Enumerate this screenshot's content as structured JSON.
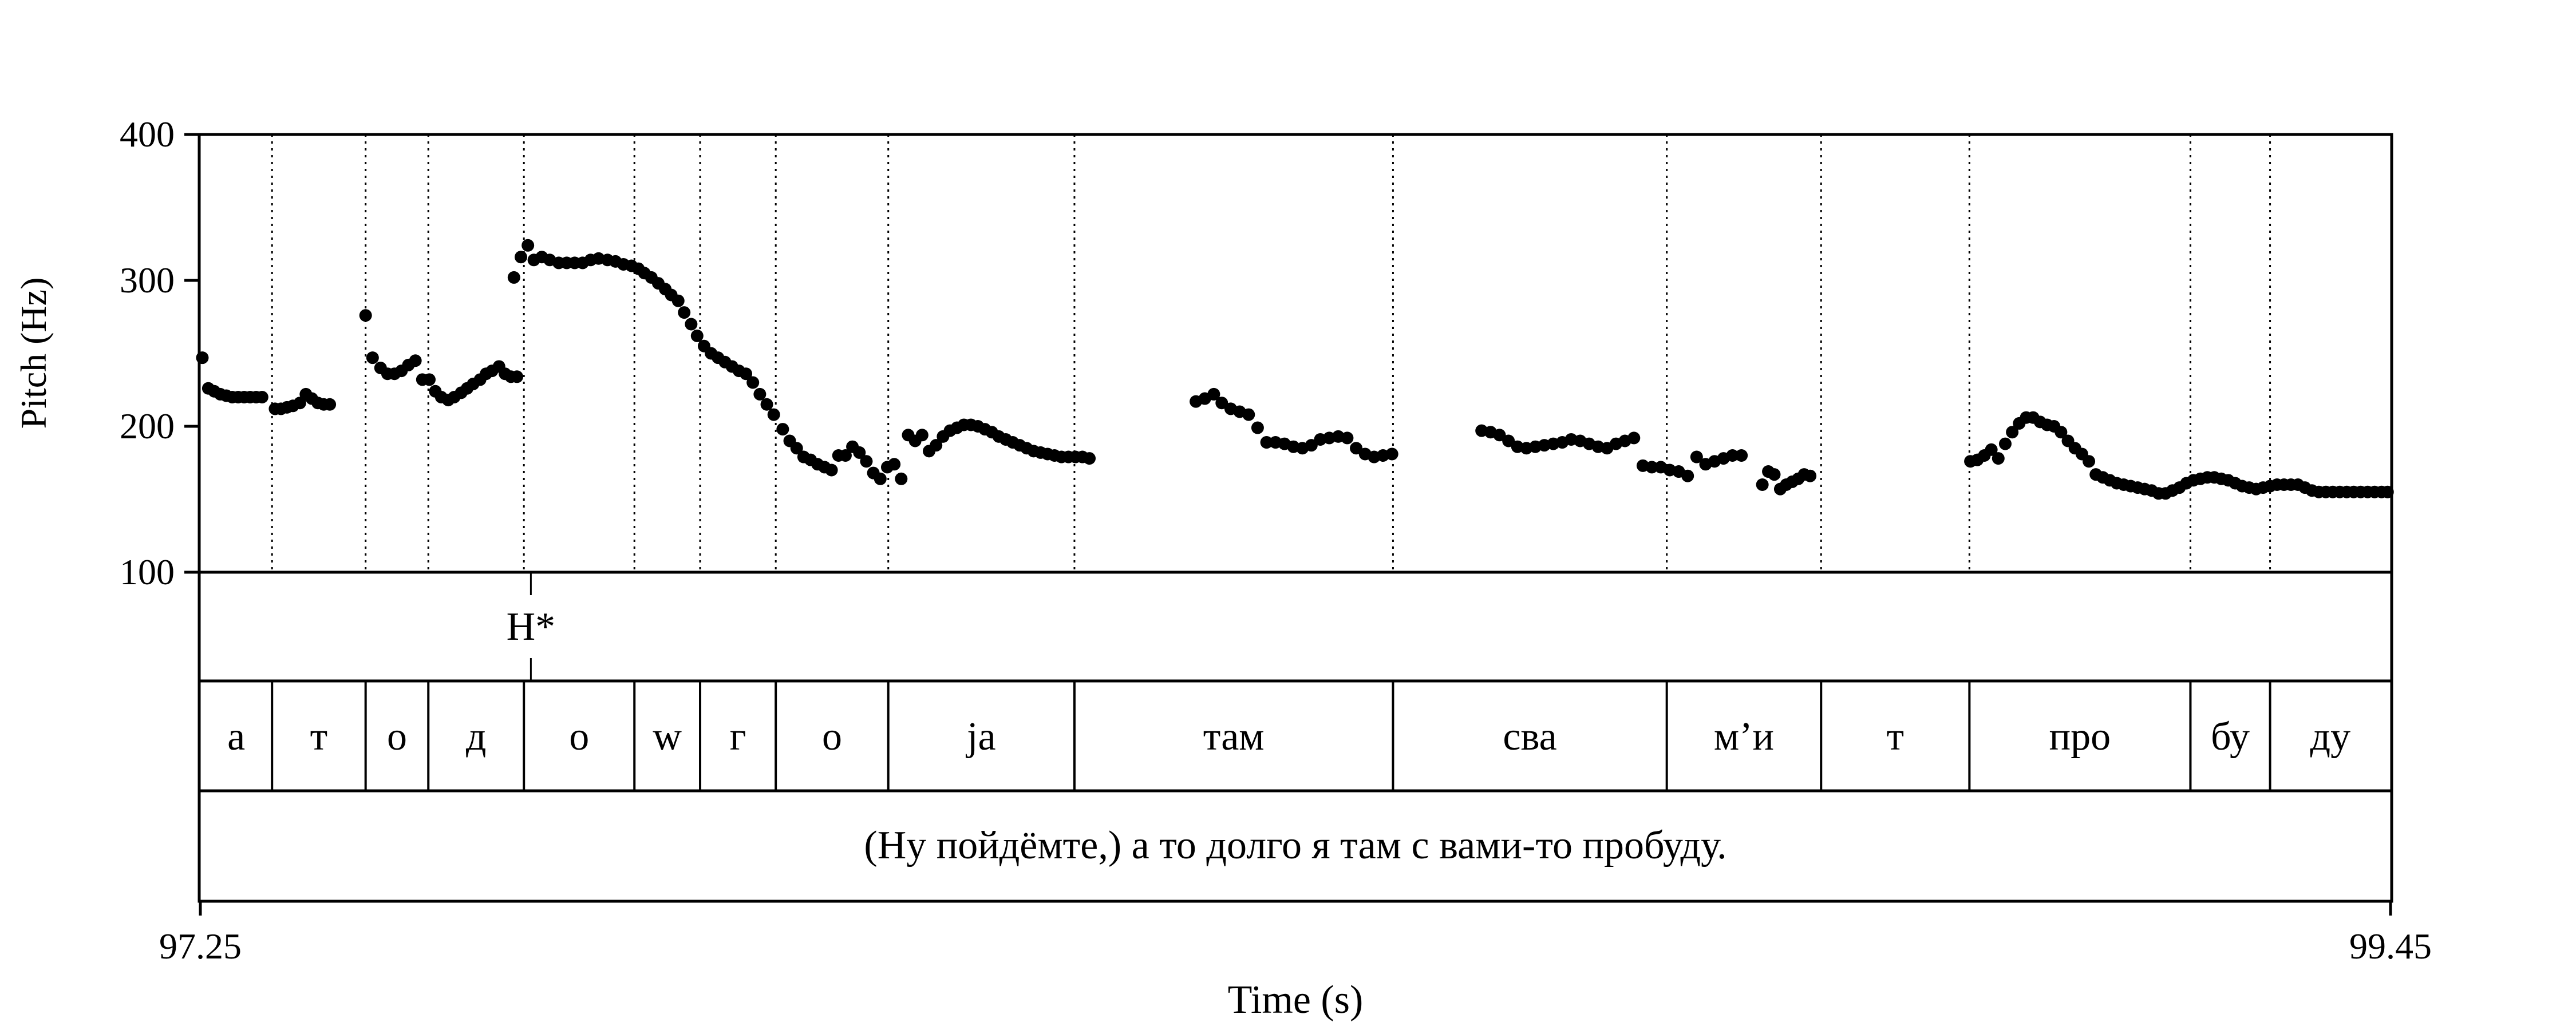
{
  "chart_data": {
    "type": "scatter",
    "xlabel": "Time (s)",
    "ylabel": "Pitch (Hz)",
    "xlim": [
      97.25,
      99.45
    ],
    "ylim": [
      100,
      400
    ],
    "x_ticks": [
      "97.25",
      "99.45"
    ],
    "y_ticks": [
      "100",
      "200",
      "300",
      "400"
    ],
    "grid": false,
    "tones": [
      {
        "label": "H*",
        "time": 97.582
      }
    ],
    "segments": [
      {
        "label": "а",
        "start": 97.25,
        "end": 97.322
      },
      {
        "label": "т",
        "start": 97.322,
        "end": 97.416
      },
      {
        "label": "о",
        "start": 97.416,
        "end": 97.479
      },
      {
        "label": "д",
        "start": 97.479,
        "end": 97.575
      },
      {
        "label": "о",
        "start": 97.575,
        "end": 97.686
      },
      {
        "label": "w",
        "start": 97.686,
        "end": 97.752
      },
      {
        "label": "г",
        "start": 97.752,
        "end": 97.828
      },
      {
        "label": "о",
        "start": 97.828,
        "end": 97.941
      },
      {
        "label": "ja",
        "start": 97.941,
        "end": 98.128
      },
      {
        "label": "там",
        "start": 98.128,
        "end": 98.448
      },
      {
        "label": "сва",
        "start": 98.448,
        "end": 98.723
      },
      {
        "label": "м’и",
        "start": 98.723,
        "end": 98.878
      },
      {
        "label": "т",
        "start": 98.878,
        "end": 99.027
      },
      {
        "label": "про",
        "start": 99.027,
        "end": 99.249
      },
      {
        "label": "бу",
        "start": 99.249,
        "end": 99.329
      },
      {
        "label": "ду",
        "start": 99.329,
        "end": 99.45
      }
    ],
    "sentence": "(Ну пойдёмте,) а то долго я там с вами-то пробуду.",
    "series": [
      {
        "x": [
          97.252,
          97.258,
          97.264,
          97.27,
          97.276,
          97.282,
          97.288,
          97.294,
          97.3,
          97.306,
          97.312,
          97.325,
          97.331,
          97.337,
          97.343,
          97.35,
          97.356,
          97.362,
          97.368,
          97.374,
          97.38,
          97.416,
          97.423,
          97.431,
          97.438,
          97.445,
          97.452,
          97.459,
          97.466,
          97.473,
          97.48,
          97.486,
          97.492,
          97.499,
          97.505,
          97.512,
          97.518,
          97.524,
          97.531,
          97.537,
          97.543,
          97.55,
          97.556,
          97.562,
          97.568,
          97.565,
          97.572,
          97.579,
          97.585,
          97.593,
          97.601,
          97.61,
          97.618,
          97.626,
          97.634,
          97.642,
          97.65,
          97.659,
          97.667,
          97.675,
          97.683,
          97.69,
          97.696,
          97.703,
          97.71,
          97.717,
          97.723,
          97.73,
          97.736,
          97.743,
          97.749,
          97.756,
          97.763,
          97.77,
          97.777,
          97.784,
          97.791,
          97.798,
          97.805,
          97.812,
          97.819,
          97.826,
          97.835,
          97.842,
          97.849,
          97.856,
          97.863,
          97.87,
          97.877,
          97.884,
          97.891,
          97.898,
          97.905,
          97.912,
          97.919,
          97.926,
          97.933,
          97.94,
          97.947,
          97.954,
          97.961,
          97.968,
          97.975,
          97.982,
          97.989,
          97.996,
          98.003,
          98.01,
          98.017,
          98.024,
          98.031,
          98.038,
          98.045,
          98.052,
          98.059,
          98.066,
          98.073,
          98.08,
          98.087,
          98.094,
          98.101,
          98.108,
          98.115,
          98.122,
          98.129,
          98.136,
          98.143,
          98.25,
          98.259,
          98.268,
          98.276,
          98.285,
          98.294,
          98.303,
          98.312,
          98.321,
          98.33,
          98.339,
          98.348,
          98.357,
          98.366,
          98.375,
          98.384,
          98.393,
          98.402,
          98.411,
          98.42,
          98.429,
          98.438,
          98.447,
          98.537,
          98.546,
          98.555,
          98.564,
          98.573,
          98.582,
          98.591,
          98.6,
          98.609,
          98.618,
          98.627,
          98.636,
          98.645,
          98.654,
          98.663,
          98.672,
          98.681,
          98.69,
          98.699,
          98.708,
          98.717,
          98.726,
          98.735,
          98.744,
          98.753,
          98.762,
          98.771,
          98.78,
          98.789,
          98.798,
          98.819,
          98.825,
          98.831,
          98.837,
          98.843,
          98.849,
          98.855,
          98.861,
          98.867,
          99.028,
          99.035,
          99.042,
          99.049,
          99.056,
          99.063,
          99.07,
          99.077,
          99.084,
          99.091,
          99.098,
          99.105,
          99.112,
          99.119,
          99.126,
          99.133,
          99.14,
          99.147,
          99.154,
          99.161,
          99.168,
          99.175,
          99.182,
          99.189,
          99.196,
          99.203,
          99.21,
          99.217,
          99.224,
          99.231,
          99.238,
          99.245,
          99.252,
          99.259,
          99.266,
          99.273,
          99.28,
          99.287,
          99.294,
          99.301,
          99.308,
          99.315,
          99.322,
          99.329,
          99.336,
          99.343,
          99.35,
          99.357,
          99.364,
          99.371,
          99.378,
          99.385,
          99.392,
          99.399,
          99.406,
          99.413,
          99.42,
          99.427,
          99.434,
          99.441,
          99.447
        ],
        "y": [
          247,
          226,
          224,
          222,
          221,
          220,
          220,
          220,
          220,
          220,
          220,
          212,
          212,
          213,
          214,
          216,
          222,
          219,
          216,
          215,
          215,
          276,
          247,
          240,
          236,
          236,
          238,
          242,
          245,
          232,
          232,
          224,
          220,
          218,
          220,
          223,
          226,
          229,
          232,
          236,
          238,
          241,
          236,
          234,
          234,
          302,
          316,
          324,
          314,
          316,
          314,
          312,
          312,
          312,
          312,
          314,
          315,
          314,
          313,
          311,
          310,
          308,
          305,
          302,
          298,
          294,
          290,
          286,
          278,
          270,
          262,
          255,
          250,
          247,
          244,
          241,
          238,
          236,
          230,
          222,
          215,
          208,
          198,
          190,
          185,
          179,
          177,
          174,
          172,
          170,
          180,
          180,
          186,
          182,
          176,
          168,
          164,
          172,
          174,
          164,
          194,
          190,
          194,
          183,
          187,
          193,
          197,
          199,
          201,
          201,
          200,
          198,
          196,
          193,
          191,
          189,
          187,
          185,
          183,
          182,
          181,
          180,
          179,
          179,
          179,
          179,
          178,
          217,
          219,
          222,
          216,
          212,
          210,
          208,
          199,
          189,
          189,
          188,
          186,
          185,
          187,
          191,
          192,
          193,
          192,
          185,
          181,
          179,
          180,
          181,
          197,
          196,
          194,
          190,
          186,
          185,
          186,
          187,
          188,
          189,
          191,
          190,
          188,
          186,
          185,
          188,
          190,
          192,
          173,
          172,
          172,
          170,
          169,
          166,
          179,
          174,
          176,
          178,
          180,
          180,
          160,
          169,
          167,
          157,
          160,
          162,
          164,
          167,
          166,
          176,
          177,
          180,
          184,
          178,
          188,
          196,
          202,
          206,
          206,
          203,
          201,
          200,
          196,
          190,
          185,
          181,
          176,
          167,
          165,
          163,
          161,
          160,
          159,
          158,
          157,
          156,
          154,
          154,
          156,
          158,
          161,
          163,
          164,
          165,
          165,
          164,
          163,
          161,
          159,
          158,
          157,
          158,
          159,
          160,
          160,
          160,
          160,
          158,
          156,
          155,
          155,
          155,
          155,
          155,
          155,
          155,
          155,
          155,
          155,
          155
        ]
      }
    ]
  }
}
